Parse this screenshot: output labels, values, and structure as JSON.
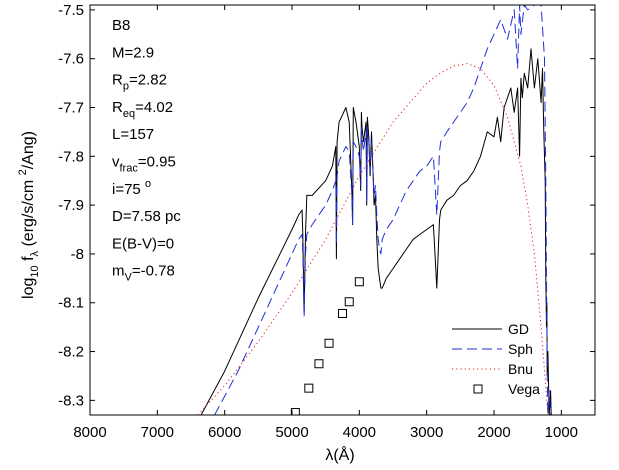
{
  "chart_data": {
    "type": "line",
    "xlabel": "λ(Å)",
    "ylabel": {
      "log": "log",
      "sub10": "10",
      "f": " f",
      "sublambda": "λ",
      "units": " (erg/s/cm ",
      "sup2": "2",
      "tail": "/Ang)"
    },
    "xlim": [
      8000,
      500
    ],
    "ylim": [
      -8.33,
      -7.49
    ],
    "xticks": [
      8000,
      7000,
      6000,
      5000,
      4000,
      3000,
      2000,
      1000
    ],
    "xtick_labels": [
      "8000",
      "7000",
      "6000",
      "5000",
      "4000",
      "3000",
      "2000",
      "1000"
    ],
    "yticks": [
      -7.5,
      -7.6,
      -7.7,
      -7.8,
      -7.9,
      -8.0,
      -8.1,
      -8.2,
      -8.3
    ],
    "ytick_labels": [
      "-7.5",
      "-7.6",
      "-7.7",
      "-7.8",
      "-7.9",
      "-8",
      "-8.1",
      "-8.2",
      "-8.3"
    ],
    "grid": false,
    "legend_position": "bottom-right",
    "annotations": [
      {
        "base": "B8"
      },
      {
        "base": "M=2.9"
      },
      {
        "base": "R",
        "sub": "p",
        "tail": "=2.82"
      },
      {
        "base": "R",
        "sub": "eq",
        "tail": "=4.02"
      },
      {
        "base": "L=157"
      },
      {
        "base": "v",
        "sub": "frac",
        "tail": "=0.95"
      },
      {
        "base": "i=75 ",
        "sup": "o"
      },
      {
        "base": "D=7.58 pc"
      },
      {
        "base": "E(B-V)=0"
      },
      {
        "base": "m",
        "sub": "V",
        "tail": "=-0.78"
      }
    ],
    "series": [
      {
        "name": "GD",
        "color": "#000000",
        "style": "solid",
        "x": [
          6350,
          6000,
          5500,
          5000,
          4900,
          4850,
          4840,
          4820,
          4800,
          4780,
          4700,
          4500,
          4400,
          4350,
          4340,
          4330,
          4300,
          4200,
          4150,
          4110,
          4100,
          4090,
          4050,
          4000,
          3980,
          3970,
          3960,
          3940,
          3900,
          3890,
          3880,
          3860,
          3840,
          3820,
          3800,
          3780,
          3760,
          3740,
          3720,
          3700,
          3680,
          3660,
          3600,
          3500,
          3400,
          3300,
          3200,
          3100,
          3000,
          2900,
          2850,
          2810,
          2800,
          2790,
          2700,
          2600,
          2500,
          2400,
          2300,
          2200,
          2100,
          2000,
          1950,
          1900,
          1850,
          1800,
          1750,
          1700,
          1650,
          1620,
          1600,
          1580,
          1550,
          1500,
          1450,
          1400,
          1350,
          1300,
          1280,
          1260,
          1240,
          1230,
          1220,
          1215,
          1210,
          1200,
          1180,
          1160,
          1150
        ],
        "y": [
          -8.33,
          -8.24,
          -8.09,
          -7.95,
          -7.92,
          -7.91,
          -7.96,
          -8.12,
          -7.96,
          -7.88,
          -7.88,
          -7.85,
          -7.82,
          -7.78,
          -8.01,
          -7.77,
          -7.73,
          -7.7,
          -7.73,
          -7.87,
          -7.94,
          -7.7,
          -7.73,
          -7.78,
          -7.87,
          -7.71,
          -7.74,
          -7.77,
          -7.73,
          -7.9,
          -7.72,
          -7.76,
          -7.84,
          -7.75,
          -7.82,
          -7.9,
          -7.88,
          -7.97,
          -8.03,
          -8.05,
          -8.07,
          -8.07,
          -8.05,
          -8.03,
          -8.01,
          -7.99,
          -7.97,
          -7.96,
          -7.95,
          -7.94,
          -8.07,
          -7.93,
          -7.92,
          -7.91,
          -7.89,
          -7.88,
          -7.86,
          -7.85,
          -7.83,
          -7.8,
          -7.75,
          -7.76,
          -7.72,
          -7.77,
          -7.7,
          -7.68,
          -7.66,
          -7.71,
          -7.66,
          -7.8,
          -7.64,
          -7.68,
          -7.63,
          -7.66,
          -7.58,
          -7.66,
          -7.6,
          -7.69,
          -7.62,
          -7.75,
          -7.85,
          -8.05,
          -8.15,
          -8.1,
          -8.25,
          -8.2,
          -8.33,
          -8.28,
          -8.33
        ]
      },
      {
        "name": "Sph",
        "color": "#1f2fd6",
        "style": "dashed",
        "x": [
          6150,
          5800,
          5400,
          5000,
          4900,
          4850,
          4840,
          4820,
          4800,
          4780,
          4700,
          4500,
          4400,
          4350,
          4340,
          4330,
          4300,
          4200,
          4150,
          4110,
          4100,
          4090,
          4050,
          4000,
          3980,
          3970,
          3960,
          3940,
          3900,
          3890,
          3880,
          3860,
          3840,
          3820,
          3800,
          3780,
          3760,
          3740,
          3720,
          3700,
          3680,
          3660,
          3600,
          3500,
          3400,
          3300,
          3200,
          3100,
          3000,
          2900,
          2850,
          2810,
          2800,
          2790,
          2700,
          2600,
          2500,
          2400,
          2300,
          2200,
          2100,
          2000,
          1900,
          1800,
          1700,
          1650,
          1620,
          1600,
          1550,
          1500,
          1400,
          1300,
          1250,
          1230,
          1220,
          1215,
          1210,
          1200,
          1180,
          1160,
          1150
        ],
        "y": [
          -8.33,
          -8.24,
          -8.12,
          -8.0,
          -7.97,
          -7.96,
          -8.0,
          -8.13,
          -8.0,
          -7.96,
          -7.94,
          -7.9,
          -7.87,
          -7.85,
          -7.98,
          -7.84,
          -7.81,
          -7.78,
          -7.79,
          -7.88,
          -7.94,
          -7.77,
          -7.78,
          -7.8,
          -7.86,
          -7.74,
          -7.76,
          -7.79,
          -7.75,
          -7.89,
          -7.74,
          -7.77,
          -7.83,
          -7.77,
          -7.82,
          -7.88,
          -7.86,
          -7.92,
          -7.97,
          -7.99,
          -8.0,
          -7.97,
          -7.95,
          -7.93,
          -7.9,
          -7.87,
          -7.85,
          -7.83,
          -7.82,
          -7.8,
          -7.92,
          -7.79,
          -7.78,
          -7.77,
          -7.75,
          -7.73,
          -7.71,
          -7.69,
          -7.66,
          -7.62,
          -7.58,
          -7.55,
          -7.52,
          -7.56,
          -7.5,
          -7.62,
          -7.49,
          -7.55,
          -7.49,
          -7.5,
          -7.49,
          -7.49,
          -7.6,
          -7.85,
          -8.05,
          -8.15,
          -8.25,
          -8.33,
          -8.28,
          -8.33,
          -8.33
        ]
      },
      {
        "name": "Bnu",
        "color": "#e0221c",
        "style": "dotted",
        "x": [
          6400,
          6000,
          5500,
          5000,
          4500,
          4000,
          3500,
          3000,
          2800,
          2600,
          2400,
          2200,
          2000,
          1800,
          1600,
          1500,
          1400,
          1300,
          1250,
          1200,
          1150
        ],
        "y": [
          -8.33,
          -8.27,
          -8.18,
          -8.08,
          -7.97,
          -7.84,
          -7.73,
          -7.65,
          -7.63,
          -7.615,
          -7.61,
          -7.62,
          -7.655,
          -7.72,
          -7.82,
          -7.9,
          -8.0,
          -8.15,
          -8.24,
          -8.33,
          -8.45
        ]
      },
      {
        "name": "Vega",
        "color": "#000000",
        "style": "square-markers",
        "x": [
          4950,
          4750,
          4600,
          4450,
          4250,
          4150,
          4000
        ],
        "y": [
          -8.325,
          -8.275,
          -8.225,
          -8.183,
          -8.122,
          -8.098,
          -8.057
        ]
      }
    ]
  }
}
